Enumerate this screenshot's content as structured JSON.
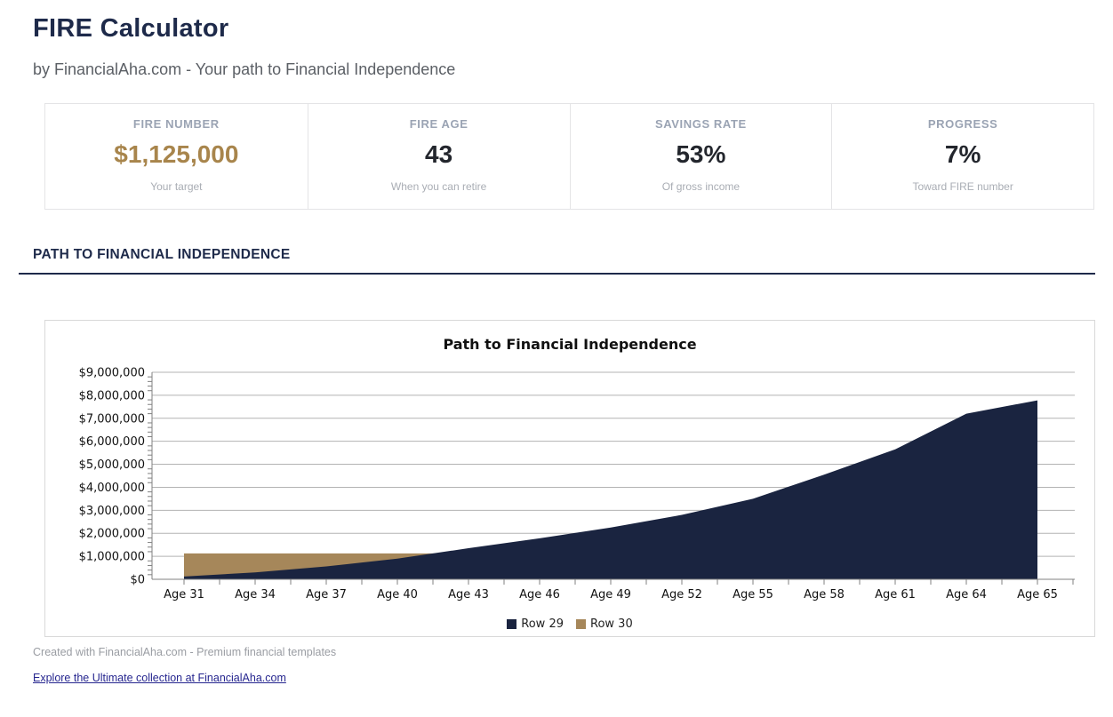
{
  "page": {
    "title": "FIRE Calculator",
    "subtitle": "by FinancialAha.com - Your path to Financial Independence",
    "section_title": "PATH TO FINANCIAL INDEPENDENCE"
  },
  "stats": [
    {
      "label": "FIRE NUMBER",
      "value": "$1,125,000",
      "sub": "Your target",
      "value_color": "#a8854c"
    },
    {
      "label": "FIRE AGE",
      "value": "43",
      "sub": "When you can retire",
      "value_color": "#23262d"
    },
    {
      "label": "SAVINGS RATE",
      "value": "53%",
      "sub": "Of gross income",
      "value_color": "#23262d"
    },
    {
      "label": "PROGRESS",
      "value": "7%",
      "sub": "Toward FIRE number",
      "value_color": "#23262d"
    }
  ],
  "chart_data": {
    "type": "area",
    "title": "Path to Financial Independence",
    "categories": [
      "Age 31",
      "Age 34",
      "Age 37",
      "Age 40",
      "Age 43",
      "Age 46",
      "Age 49",
      "Age 52",
      "Age 55",
      "Age 58",
      "Age 61",
      "Age 64",
      "Age 65"
    ],
    "series": [
      {
        "name": "Row 29",
        "color": "#1a2440",
        "values": [
          120000,
          300000,
          560000,
          900000,
          1350000,
          1780000,
          2250000,
          2800000,
          3500000,
          4550000,
          5650000,
          7200000,
          7780000
        ]
      },
      {
        "name": "Row 30",
        "color": "#a6875a",
        "values": [
          1125000,
          1125000,
          1125000,
          1125000,
          1125000,
          1125000,
          1125000,
          1125000,
          1125000,
          1125000,
          1125000,
          1125000,
          1125000
        ]
      }
    ],
    "ylim": [
      0,
      9000000
    ],
    "ytick_step": 1000000,
    "yticks": [
      "$9,000,000",
      "$8,000,000",
      "$7,000,000",
      "$6,000,000",
      "$5,000,000",
      "$4,000,000",
      "$3,000,000",
      "$2,000,000",
      "$1,000,000",
      "$0"
    ],
    "grid": true,
    "legend_position": "bottom",
    "grid_color": "#b3b3b3",
    "axis_color": "#808080"
  },
  "footer": {
    "credit": "Created with FinancialAha.com - Premium financial templates",
    "link": "Explore the Ultimate collection at FinancialAha.com"
  }
}
